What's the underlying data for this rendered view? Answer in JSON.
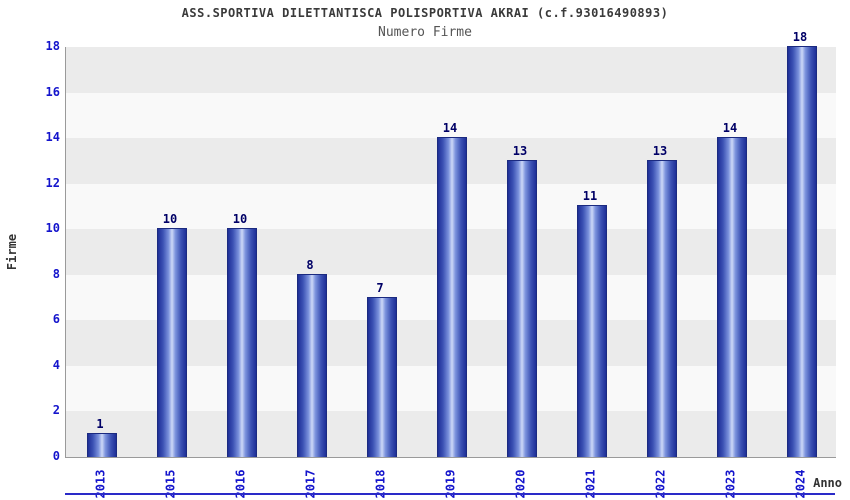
{
  "header": {
    "title": "ASS.SPORTIVA DILETTANTISCA POLISPORTIVA AKRAI (c.f.93016490893)",
    "subtitle": "Numero Firme"
  },
  "chart_data": {
    "type": "bar",
    "title": "ASS.SPORTIVA DILETTANTISCA POLISPORTIVA AKRAI (c.f.93016490893)",
    "subtitle": "Numero Firme",
    "categories": [
      "2013",
      "2015",
      "2016",
      "2017",
      "2018",
      "2019",
      "2020",
      "2021",
      "2022",
      "2023",
      "2024"
    ],
    "values": [
      1,
      10,
      10,
      8,
      7,
      14,
      13,
      11,
      13,
      14,
      18
    ],
    "xlabel": "Anno",
    "ylabel": "Firme",
    "ylim": [
      0,
      18
    ],
    "ytick_step": 2,
    "grid": "horizontal-bands",
    "legend": "none",
    "colors": {
      "bar_edge": "#1e2f97",
      "bar_center": "#cdd8f7",
      "tick_label": "#1414cc",
      "value_label": "#000066",
      "band_gray": "#ebebeb",
      "band_white": "#f9f9f9",
      "title": "#3a3a3a"
    }
  }
}
